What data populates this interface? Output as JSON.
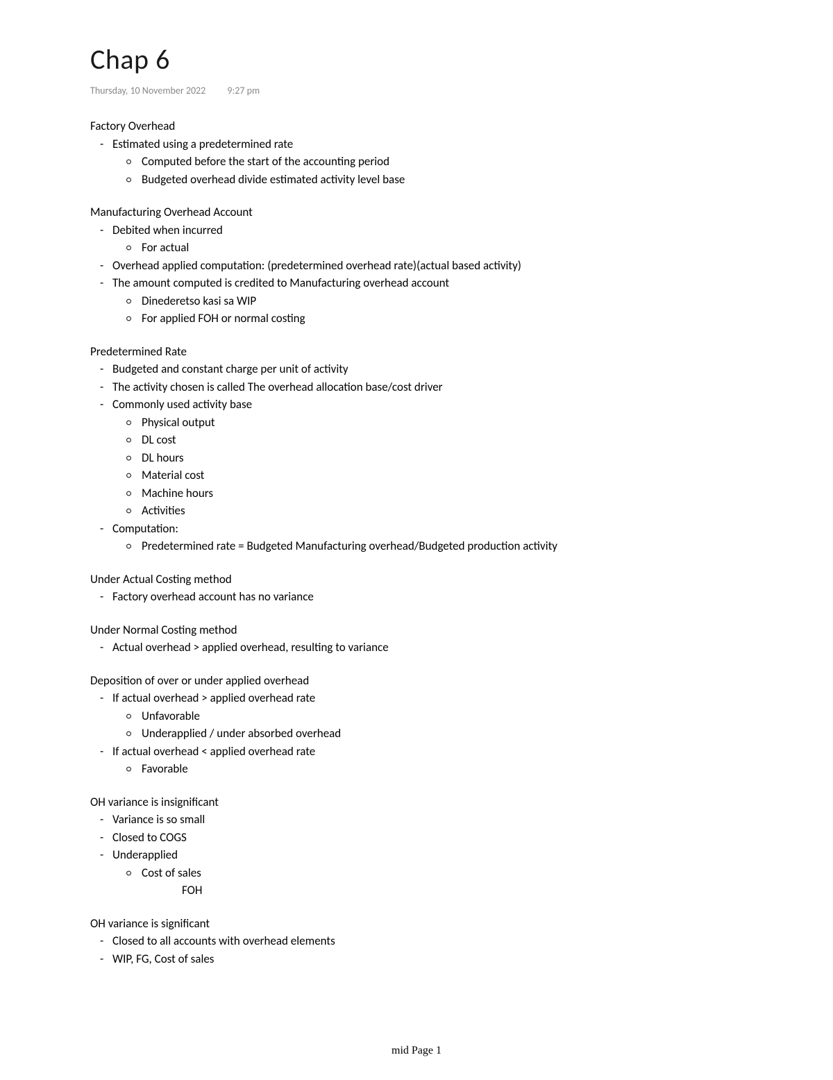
{
  "title": "Chap 6",
  "date": "Thursday, 10 November 2022",
  "time": "9:27 pm",
  "sections": [
    {
      "heading": "Factory Overhead",
      "items": [
        {
          "text": "Estimated using a predetermined rate",
          "sub": [
            "Computed before the start of the accounting period",
            "Budgeted overhead divide estimated activity level base"
          ]
        }
      ]
    },
    {
      "heading": "Manufacturing Overhead Account",
      "items": [
        {
          "text": "Debited when incurred",
          "sub": [
            "For actual"
          ]
        },
        {
          "text": "Overhead applied computation: (predetermined overhead rate)(actual based activity)"
        },
        {
          "text": "The amount computed is credited to Manufacturing overhead account",
          "sub": [
            "Dinederetso kasi sa WIP",
            "For applied FOH or normal costing"
          ]
        }
      ]
    },
    {
      "heading": "Predetermined Rate",
      "items": [
        {
          "text": "Budgeted and constant charge per unit of activity"
        },
        {
          "text": "The activity chosen is called The overhead allocation base/cost driver"
        },
        {
          "text": "Commonly used activity base",
          "sub": [
            "Physical output",
            "DL cost",
            "DL hours",
            "Material cost",
            "Machine hours",
            "Activities"
          ]
        },
        {
          "text": "Computation:",
          "sub": [
            "Predetermined rate = Budgeted Manufacturing overhead/Budgeted production activity"
          ]
        }
      ]
    },
    {
      "heading": "Under Actual Costing method",
      "items": [
        {
          "text": "Factory overhead account has no variance"
        }
      ]
    },
    {
      "heading": "Under Normal Costing method",
      "items": [
        {
          "text": "Actual overhead > applied overhead, resulting to variance"
        }
      ]
    },
    {
      "heading": "Deposition of over or under applied overhead",
      "items": [
        {
          "text": "If actual overhead > applied overhead rate",
          "sub": [
            "Unfavorable",
            "Underapplied / under absorbed overhead"
          ]
        },
        {
          "text": "If actual overhead < applied overhead rate",
          "sub": [
            "Favorable"
          ]
        }
      ]
    },
    {
      "heading": "OH variance is insignificant",
      "items": [
        {
          "text": "Variance is so small"
        },
        {
          "text": "Closed to COGS"
        },
        {
          "text": "Underapplied",
          "sub": [
            "Cost of sales"
          ],
          "extra": "FOH"
        }
      ]
    },
    {
      "heading": "OH variance is significant",
      "items": [
        {
          "text": "Closed to all accounts with overhead elements"
        },
        {
          "text": "WIP, FG, Cost of sales"
        }
      ]
    }
  ],
  "footer": "mid Page 1"
}
